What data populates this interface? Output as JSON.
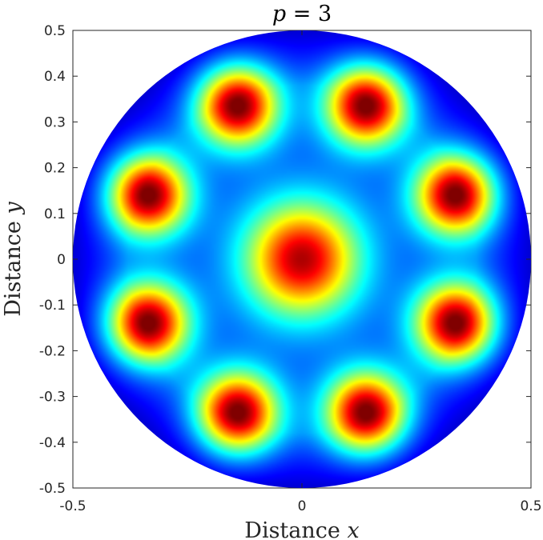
{
  "chart_data": {
    "type": "heatmap",
    "title": {
      "italic": "p",
      "rest": " = 3"
    },
    "xlabel": {
      "text": "Distance ",
      "italic": "x"
    },
    "ylabel": {
      "text": "Distance ",
      "italic": "y"
    },
    "xlim": [
      -0.5,
      0.5
    ],
    "ylim": [
      -0.5,
      0.5
    ],
    "xticks": [
      -0.5,
      0,
      0.5
    ],
    "xtick_labels": [
      "-0.5",
      "0",
      "0.5"
    ],
    "yticks": [
      0.5,
      0.4,
      0.3,
      0.2,
      0.1,
      0,
      -0.1,
      -0.2,
      -0.3,
      -0.4,
      -0.5
    ],
    "ytick_labels": [
      "0.5",
      "0.4",
      "0.3",
      "0.2",
      "0.1",
      "0",
      "-0.1",
      "-0.2",
      "-0.3",
      "-0.4",
      "-0.5"
    ],
    "domain_shape": "disk",
    "domain_radius": 0.5,
    "colormap": "jet",
    "colors": {
      "low": "#00008f",
      "high": "#800000",
      "axes": "#262626"
    },
    "peaks": [
      {
        "x": 0.0,
        "y": 0.0,
        "value": 0.92,
        "width": 0.085
      },
      {
        "x": -0.14,
        "y": 0.335,
        "value": 1.0,
        "width": 0.06
      },
      {
        "x": 0.14,
        "y": 0.335,
        "value": 1.0,
        "width": 0.06
      },
      {
        "x": -0.335,
        "y": 0.14,
        "value": 1.0,
        "width": 0.06
      },
      {
        "x": 0.335,
        "y": 0.14,
        "value": 1.0,
        "width": 0.06
      },
      {
        "x": -0.335,
        "y": -0.14,
        "value": 1.0,
        "width": 0.06
      },
      {
        "x": 0.335,
        "y": -0.14,
        "value": 1.0,
        "width": 0.06
      },
      {
        "x": -0.14,
        "y": -0.335,
        "value": 1.0,
        "width": 0.06
      },
      {
        "x": 0.14,
        "y": -0.335,
        "value": 1.0,
        "width": 0.06
      }
    ]
  }
}
